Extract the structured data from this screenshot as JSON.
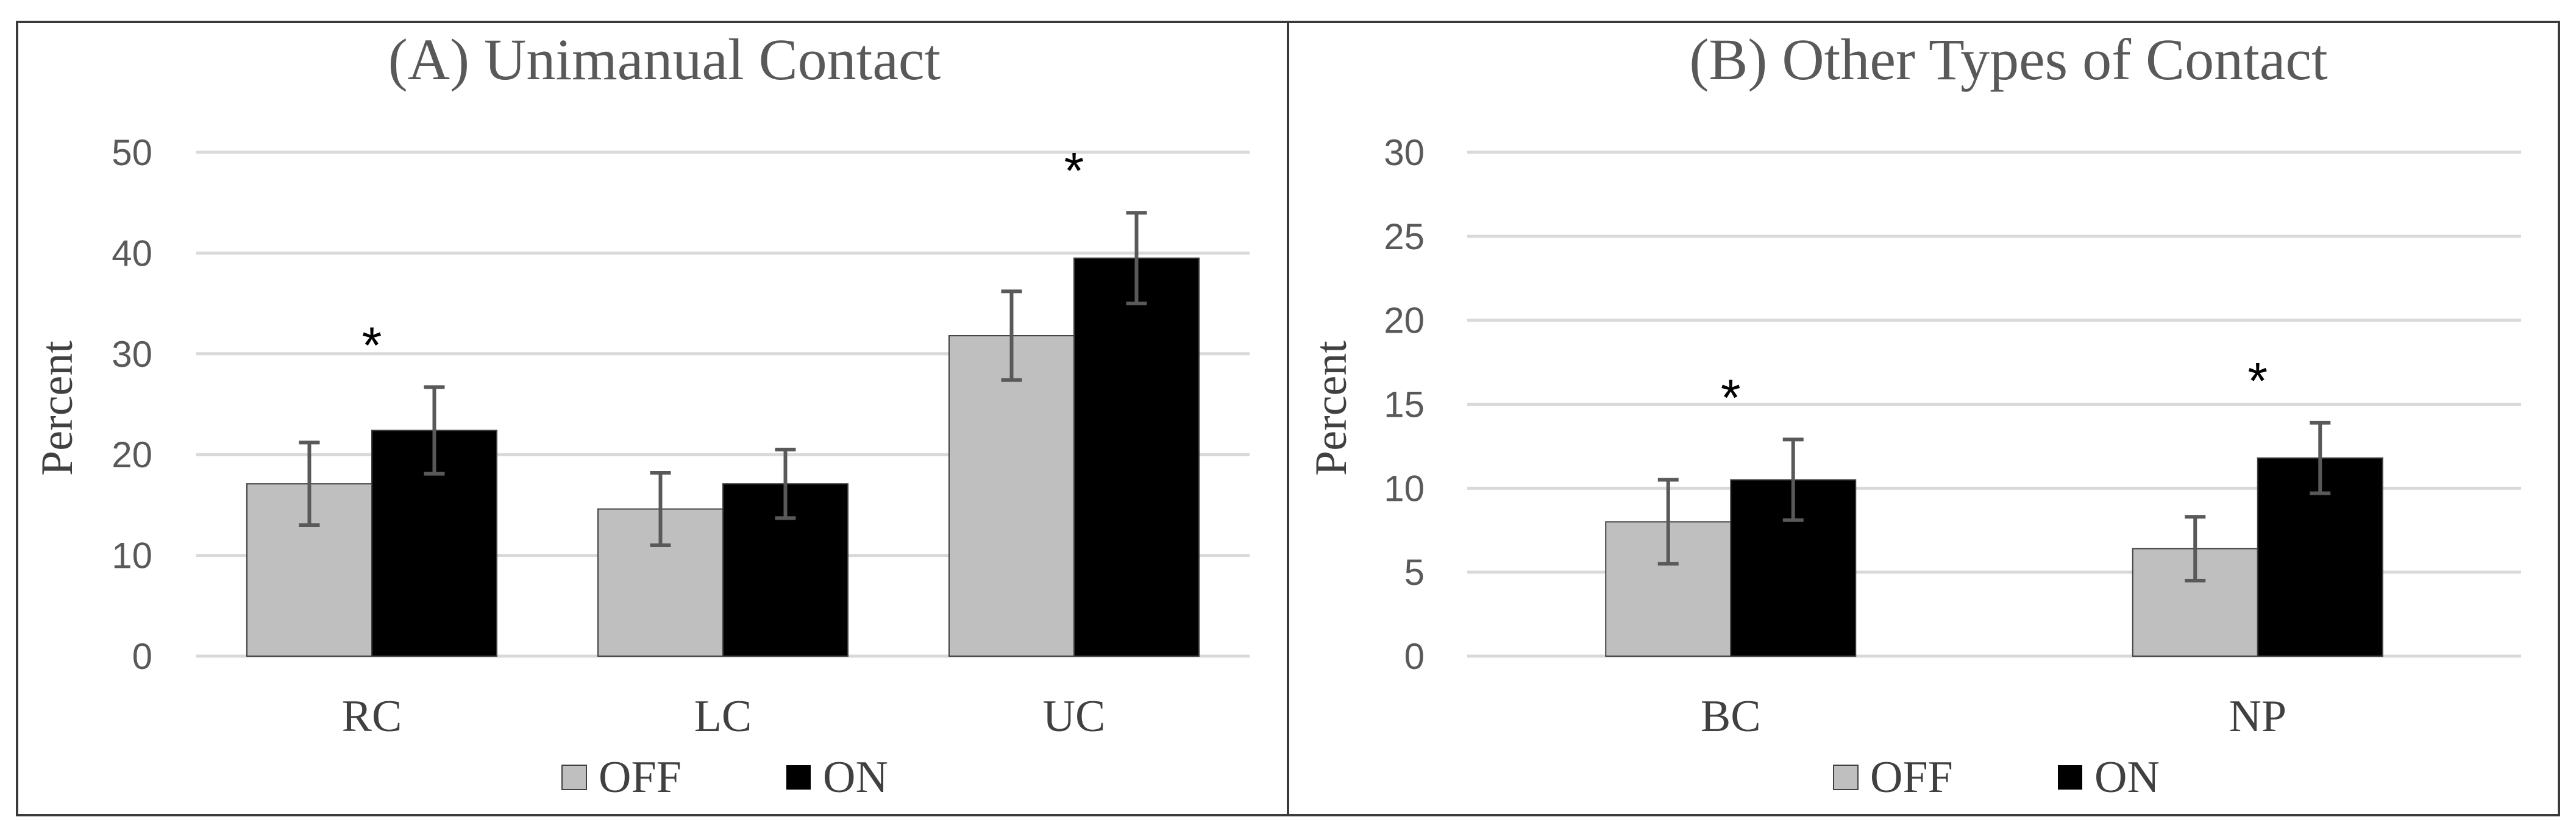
{
  "chart_data": [
    {
      "type": "bar",
      "title": "(A) Unimanual Contact",
      "xlabel": "",
      "ylabel": "Percent",
      "ylim": [
        0,
        50
      ],
      "yticks": [
        0,
        10,
        20,
        30,
        40,
        50
      ],
      "grid": true,
      "categories": [
        "RC",
        "LC",
        "UC"
      ],
      "series": [
        {
          "name": "OFF",
          "color": "#bfbfbf",
          "values": [
            17.1,
            14.6,
            31.8
          ],
          "errors": [
            4.1,
            3.6,
            4.4
          ]
        },
        {
          "name": "ON",
          "color": "#000000",
          "values": [
            22.4,
            17.1,
            39.5
          ],
          "errors": [
            4.3,
            3.4,
            4.5
          ]
        }
      ],
      "annotations": [
        {
          "category": "RC",
          "text": "*"
        },
        {
          "category": "UC",
          "text": "*"
        }
      ],
      "legend": "bottom-center"
    },
    {
      "type": "bar",
      "title": "(B) Other Types of Contact",
      "xlabel": "",
      "ylabel": "Percent",
      "ylim": [
        0,
        30
      ],
      "yticks": [
        0,
        5,
        10,
        15,
        20,
        25,
        30
      ],
      "grid": true,
      "categories": [
        "BC",
        "NP"
      ],
      "series": [
        {
          "name": "OFF",
          "color": "#bfbfbf",
          "values": [
            8.0,
            6.4
          ],
          "errors": [
            2.5,
            1.9
          ]
        },
        {
          "name": "ON",
          "color": "#000000",
          "values": [
            10.5,
            11.8
          ],
          "errors": [
            2.4,
            2.1
          ]
        }
      ],
      "annotations": [
        {
          "category": "BC",
          "text": "*"
        },
        {
          "category": "NP",
          "text": "*"
        }
      ],
      "legend": "bottom-center"
    }
  ]
}
